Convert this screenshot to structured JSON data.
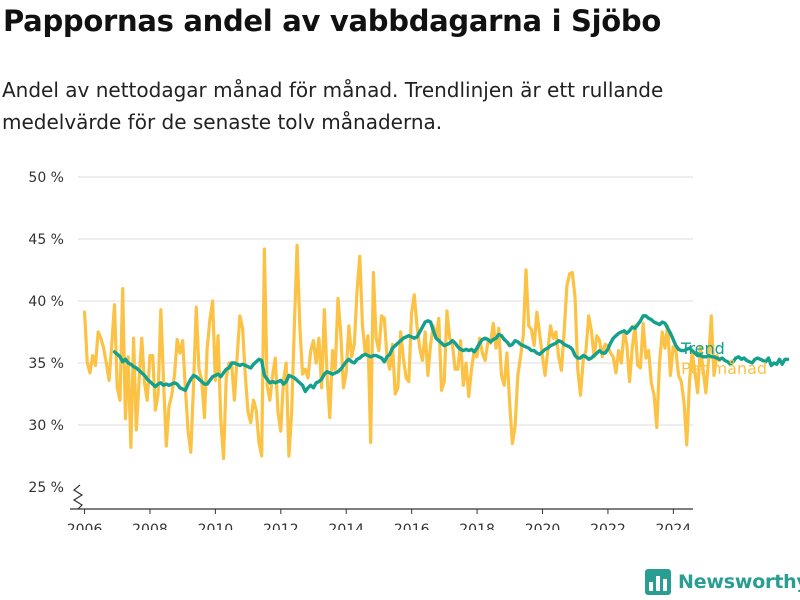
{
  "title": "Pappornas andel av vabbdagarna i Sjöbo",
  "subtitle": "Andel av nettodagar månad för månad. Trendlinjen är ett rullande medelvärde för de senaste tolv månaderna.",
  "brand": {
    "name": "Newsworthy",
    "icon": "bar-chart-logo-icon"
  },
  "colors": {
    "monthly": "#FBC245",
    "trend": "#13A08C",
    "grid": "#DDDDDD",
    "axis": "#333333"
  },
  "chart_data": {
    "type": "line",
    "title": "Pappornas andel av vabbdagarna i Sjöbo",
    "xlabel": "",
    "ylabel": "",
    "xlim": [
      2005.8,
      2024.6
    ],
    "ylim": [
      25,
      50
    ],
    "y_ticks": [
      25,
      30,
      35,
      40,
      45,
      50
    ],
    "y_tick_labels": [
      "25 %",
      "30 %",
      "35 %",
      "40 %",
      "45 %",
      "50 %"
    ],
    "x_ticks": [
      2006,
      2008,
      2010,
      2012,
      2014,
      2016,
      2018,
      2020,
      2022,
      2024
    ],
    "x_tick_labels": [
      "2006",
      "2008",
      "2010",
      "2012",
      "2014",
      "2016",
      "2018",
      "2020",
      "2022",
      "2024"
    ],
    "grid": "horizontal",
    "legend": "right, at end of lines",
    "series": [
      {
        "name": "Per månad",
        "x_start": 2006.0,
        "x_step": 0.0833,
        "values": [
          39.1,
          35.0,
          34.2,
          35.6,
          34.8,
          37.5,
          37.0,
          36.2,
          35.0,
          33.6,
          36.5,
          39.7,
          33.0,
          32.0,
          41.0,
          30.5,
          35.5,
          28.2,
          37.0,
          29.6,
          33.5,
          37.0,
          33.4,
          32.0,
          35.6,
          35.6,
          31.2,
          32.5,
          39.3,
          33.5,
          28.3,
          31.5,
          32.4,
          34.0,
          36.9,
          35.8,
          36.8,
          33.0,
          29.5,
          27.8,
          33.2,
          39.5,
          34.5,
          33.6,
          30.6,
          36.2,
          38.5,
          40.0,
          33.6,
          37.2,
          30.4,
          27.3,
          33.8,
          35.0,
          34.9,
          32.0,
          35.5,
          38.8,
          37.8,
          34.0,
          31.0,
          30.2,
          32.0,
          31.2,
          28.6,
          27.5,
          44.2,
          33.2,
          32.0,
          34.0,
          35.4,
          31.0,
          29.5,
          33.6,
          35.0,
          27.5,
          31.0,
          38.0,
          44.5,
          38.0,
          34.1,
          34.5,
          33.8,
          36.0,
          36.8,
          35.0,
          37.0,
          33.0,
          39.3,
          34.0,
          30.6,
          36.0,
          34.5,
          40.2,
          37.5,
          33.0,
          34.2,
          38.0,
          35.5,
          36.5,
          40.8,
          43.6,
          38.0,
          35.8,
          37.2,
          28.6,
          42.3,
          37.0,
          36.0,
          38.8,
          38.6,
          35.5,
          34.5,
          36.5,
          32.5,
          33.0,
          37.5,
          35.4,
          33.8,
          33.5,
          39.0,
          40.5,
          38.0,
          36.2,
          35.2,
          37.5,
          34.0,
          36.5,
          38.0,
          37.0,
          38.6,
          32.8,
          33.5,
          39.2,
          37.0,
          36.5,
          34.5,
          34.5,
          36.8,
          33.2,
          35.0,
          32.3,
          34.5,
          36.0,
          35.5,
          37.0,
          35.8,
          35.2,
          36.7,
          36.6,
          38.2,
          36.2,
          37.8,
          34.0,
          33.2,
          35.8,
          31.8,
          28.5,
          29.9,
          34.0,
          35.5,
          37.2,
          42.5,
          38.0,
          37.7,
          36.4,
          39.1,
          37.4,
          35.6,
          34.0,
          36.0,
          38.0,
          37.0,
          37.5,
          35.5,
          34.4,
          37.5,
          41.2,
          42.2,
          42.3,
          40.3,
          34.5,
          32.4,
          35.2,
          36.0,
          38.8,
          37.6,
          35.5,
          37.2,
          36.8,
          35.5,
          36.5,
          36.4,
          35.8,
          35.5,
          34.2,
          36.0,
          35.0,
          37.5,
          36.5,
          33.5,
          36.2,
          38.0,
          34.8,
          34.6,
          38.2,
          35.4,
          36.0,
          33.4,
          32.4,
          29.8,
          35.0,
          37.5,
          36.2,
          38.0,
          34.0,
          36.3,
          36.0,
          34.0,
          33.5,
          31.8,
          28.4,
          33.5,
          36.0,
          34.2,
          32.6,
          36.3,
          34.5,
          32.6,
          35.2,
          38.8,
          34.0,
          35.6,
          35.2
        ]
      },
      {
        "name": "Trend",
        "x_start": 2006.917,
        "x_step": 0.0833,
        "values": [
          35.9,
          35.7,
          35.5,
          35.1,
          35.3,
          35.0,
          34.9,
          34.7,
          34.6,
          34.4,
          34.2,
          34.0,
          33.7,
          33.5,
          33.3,
          33.1,
          33.3,
          33.4,
          33.2,
          33.3,
          33.2,
          33.3,
          33.4,
          33.3,
          33.0,
          32.9,
          32.8,
          33.3,
          33.7,
          34.0,
          33.9,
          33.7,
          33.5,
          33.3,
          33.3,
          33.6,
          33.9,
          34.0,
          34.1,
          33.9,
          34.2,
          34.5,
          34.6,
          35.0,
          35.0,
          34.9,
          34.8,
          34.9,
          34.8,
          34.7,
          34.6,
          34.9,
          35.1,
          35.3,
          35.2,
          34.0,
          33.7,
          33.4,
          33.5,
          33.4,
          33.5,
          33.6,
          33.3,
          33.5,
          34.0,
          33.9,
          33.8,
          33.6,
          33.4,
          33.2,
          32.7,
          33.0,
          33.2,
          33.0,
          33.4,
          33.5,
          33.7,
          34.1,
          34.3,
          34.2,
          34.1,
          34.2,
          34.3,
          34.5,
          34.8,
          35.1,
          35.3,
          35.1,
          35.0,
          35.3,
          35.4,
          35.6,
          35.7,
          35.6,
          35.5,
          35.6,
          35.6,
          35.5,
          35.4,
          35.1,
          35.5,
          35.7,
          36.2,
          36.4,
          36.6,
          36.8,
          37.0,
          37.1,
          37.2,
          37.1,
          37.0,
          37.1,
          37.5,
          37.9,
          38.3,
          38.4,
          38.3,
          37.6,
          37.0,
          36.8,
          36.6,
          36.4,
          36.5,
          36.6,
          36.8,
          36.6,
          36.3,
          36.1,
          36.0,
          36.1,
          36.0,
          36.1,
          35.9,
          36.2,
          36.6,
          36.9,
          37.0,
          36.9,
          36.7,
          36.9,
          37.0,
          37.3,
          37.2,
          36.9,
          36.7,
          36.4,
          36.5,
          36.8,
          36.7,
          36.5,
          36.4,
          36.3,
          36.2,
          36.0,
          36.0,
          35.8,
          35.7,
          35.9,
          36.1,
          36.2,
          36.4,
          36.5,
          36.6,
          36.8,
          36.7,
          36.5,
          36.4,
          36.3,
          36.1,
          35.6,
          35.4,
          35.4,
          35.6,
          35.5,
          35.3,
          35.4,
          35.6,
          35.8,
          36.0,
          35.8,
          35.8,
          36.1,
          36.6,
          37.0,
          37.2,
          37.4,
          37.5,
          37.6,
          37.4,
          37.6,
          37.9,
          37.8,
          38.1,
          38.4,
          38.8,
          38.8,
          38.6,
          38.5,
          38.3,
          38.2,
          38.1,
          38.3,
          38.2,
          37.8,
          37.4,
          36.9,
          36.4,
          36.1,
          36.0,
          36.0,
          36.1,
          36.2,
          36.0,
          35.8,
          35.6,
          35.6,
          35.5,
          35.5,
          35.6,
          35.5,
          35.5,
          35.4,
          35.3,
          35.4,
          35.2,
          35.1,
          34.9,
          35.1,
          35.4,
          35.5,
          35.3,
          35.4,
          35.2,
          35.1,
          35.0,
          35.3,
          35.4,
          35.3,
          35.2,
          35.1,
          35.4,
          34.8,
          35.0,
          34.9,
          35.3,
          34.9,
          35.3,
          35.3
        ]
      }
    ]
  }
}
